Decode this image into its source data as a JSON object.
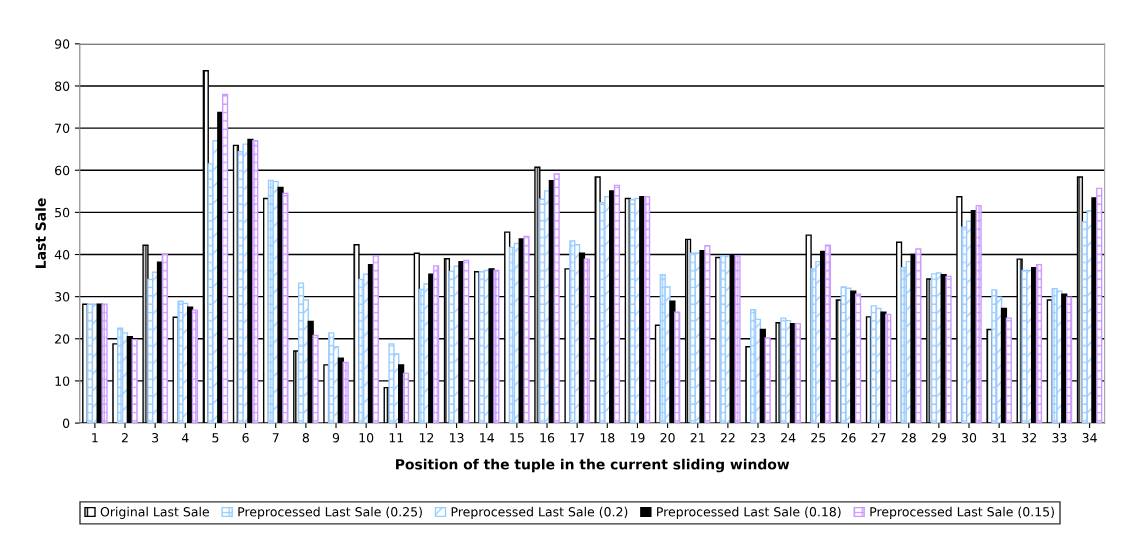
{
  "chart_data": {
    "type": "bar",
    "xlabel": "Position of the tuple in the current sliding window",
    "ylabel": "Last Sale",
    "categories": [
      "1",
      "2",
      "3",
      "4",
      "5",
      "6",
      "7",
      "8",
      "9",
      "10",
      "11",
      "12",
      "13",
      "14",
      "15",
      "16",
      "17",
      "18",
      "19",
      "20",
      "21",
      "22",
      "23",
      "24",
      "25",
      "26",
      "27",
      "28",
      "29",
      "30",
      "31",
      "32",
      "33",
      "34"
    ],
    "series": [
      {
        "name": "Original Last Sale",
        "color": "#000000",
        "values": [
          28.2,
          18.8,
          42.2,
          25.1,
          83.6,
          65.9,
          53.3,
          17.1,
          13.8,
          42.3,
          8.4,
          40.3,
          39.0,
          35.9,
          45.3,
          60.7,
          36.6,
          58.4,
          53.3,
          23.2,
          43.6,
          39.3,
          18.1,
          23.8,
          44.6,
          29.2,
          25.2,
          42.9,
          34.2,
          53.7,
          22.2,
          38.9,
          29.2,
          58.4
        ]
      },
      {
        "name": "Preprocessed Last Sale (0.25)",
        "color": "#99ccff",
        "values": [
          28.2,
          22.5,
          34.1,
          28.9,
          61.5,
          64.4,
          57.6,
          33.2,
          21.4,
          34.1,
          18.8,
          31.7,
          36.0,
          35.9,
          41.7,
          53.1,
          43.2,
          52.3,
          53.0,
          35.2,
          40.3,
          39.7,
          26.9,
          24.9,
          36.6,
          32.3,
          27.8,
          36.9,
          35.4,
          46.5,
          31.6,
          36.2,
          31.9,
          47.7
        ]
      },
      {
        "name": "Preprocessed Last Sale (0.2)",
        "color": "#99ccff",
        "values": [
          28.2,
          21.4,
          35.8,
          28.4,
          67.0,
          66.2,
          57.3,
          29.2,
          18.1,
          35.3,
          16.4,
          33.0,
          37.2,
          36.2,
          42.6,
          55.1,
          42.3,
          53.7,
          53.3,
          32.3,
          40.3,
          39.7,
          24.6,
          24.3,
          38.3,
          32.0,
          27.2,
          38.3,
          35.6,
          47.9,
          29.9,
          36.2,
          31.3,
          50.4
        ]
      },
      {
        "name": "Preprocessed Last Sale (0.18)",
        "color": "#000000",
        "values": [
          28.2,
          20.5,
          38.2,
          27.5,
          73.7,
          67.3,
          55.9,
          24.1,
          15.4,
          37.6,
          13.8,
          35.3,
          38.3,
          36.6,
          43.7,
          57.5,
          40.3,
          55.1,
          53.7,
          28.9,
          40.9,
          39.7,
          22.2,
          23.6,
          40.7,
          31.3,
          26.3,
          40.0,
          35.2,
          50.4,
          27.2,
          36.9,
          30.6,
          53.4
        ]
      },
      {
        "name": "Preprocessed Last Sale (0.15)",
        "color": "#cc99ff",
        "values": [
          28.2,
          19.8,
          40.0,
          26.8,
          78.0,
          67.0,
          54.5,
          20.8,
          14.4,
          39.7,
          11.8,
          37.3,
          38.6,
          36.2,
          44.3,
          59.1,
          38.9,
          56.4,
          53.7,
          26.3,
          42.1,
          39.7,
          20.2,
          23.6,
          42.2,
          30.6,
          25.8,
          41.3,
          34.8,
          51.6,
          24.9,
          37.6,
          29.9,
          55.7
        ]
      }
    ],
    "ylim": [
      0,
      90
    ],
    "yticks": [
      0,
      10,
      20,
      30,
      40,
      50,
      60,
      70,
      80,
      90
    ],
    "grid": "y",
    "legend": "bottom"
  }
}
